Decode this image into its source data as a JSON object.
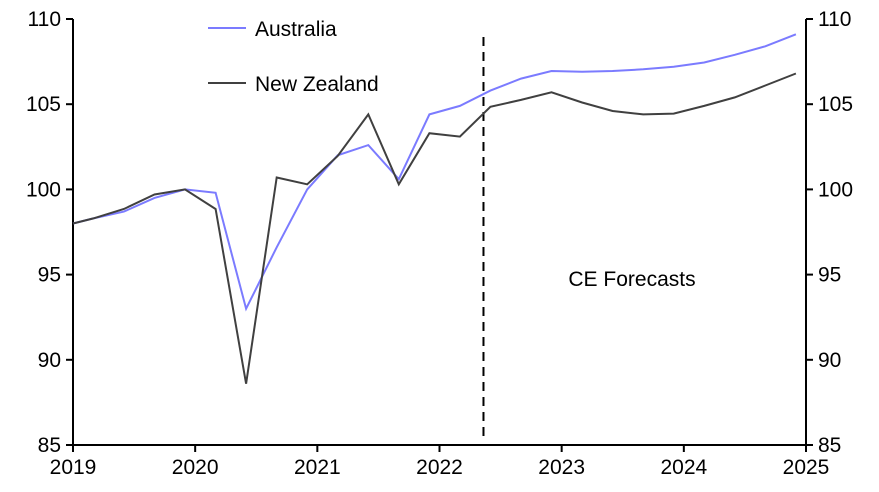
{
  "chart_data": {
    "type": "line",
    "title": "",
    "xlabel": "",
    "ylabel": "",
    "xlim": [
      2019,
      2025
    ],
    "ylim": [
      85,
      110
    ],
    "x_ticks": [
      "2019",
      "2020",
      "2021",
      "2022",
      "2023",
      "2024",
      "2025"
    ],
    "y_ticks": [
      "85",
      "90",
      "95",
      "100",
      "105",
      "110"
    ],
    "grid": false,
    "legend_position": "top-left",
    "forecast_marker_x": 2022.36,
    "annotation": "CE Forecasts",
    "x": [
      2019.0,
      2019.167,
      2019.417,
      2019.667,
      2019.917,
      2020.167,
      2020.417,
      2020.667,
      2020.917,
      2021.167,
      2021.417,
      2021.667,
      2021.917,
      2022.167,
      2022.417,
      2022.667,
      2022.917,
      2023.167,
      2023.417,
      2023.667,
      2023.917,
      2024.167,
      2024.417,
      2024.667,
      2024.917
    ],
    "series": [
      {
        "name": "Australia",
        "color": "#7b7bff",
        "values": [
          98.0,
          98.3,
          98.7,
          99.5,
          100.0,
          99.8,
          93.0,
          96.6,
          100.0,
          102.0,
          102.6,
          100.6,
          104.4,
          104.9,
          105.8,
          106.5,
          106.95,
          106.9,
          106.95,
          107.05,
          107.2,
          107.45,
          107.9,
          108.4,
          109.1
        ]
      },
      {
        "name": "New Zealand",
        "color": "#404040",
        "values": [
          98.0,
          98.3,
          98.85,
          99.7,
          100.0,
          98.85,
          88.6,
          100.7,
          100.3,
          101.96,
          104.4,
          100.3,
          103.3,
          103.1,
          104.85,
          105.25,
          105.7,
          105.1,
          104.6,
          104.4,
          104.45,
          104.9,
          105.4,
          106.1,
          106.8
        ]
      }
    ]
  }
}
